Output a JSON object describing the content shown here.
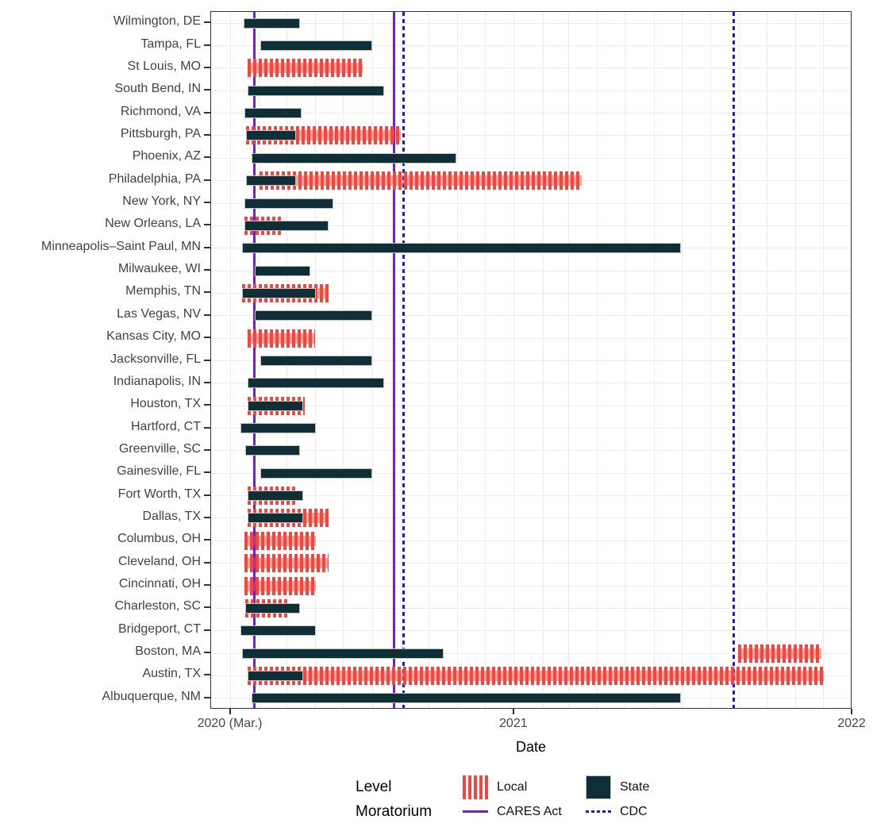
{
  "chart_data": {
    "type": "bar",
    "subtype": "gantt-timeline",
    "title": "",
    "xlabel": "Date",
    "ylabel": "",
    "x_domain": [
      "2020-02-09",
      "2022-01-01"
    ],
    "x_ticks": [
      {
        "date": "2020-03-01",
        "label": "2020 (Mar.)"
      },
      {
        "date": "2021-01-01",
        "label": "2021"
      },
      {
        "date": "2022-01-01",
        "label": "2022"
      }
    ],
    "grid": "monthly vertical + per-row horizontal, light gray",
    "legend_position": "bottom",
    "rows": [
      {
        "city": "Wilmington, DE",
        "bars": [
          {
            "level": "state",
            "start": "2020-03-15",
            "end": "2020-05-15"
          }
        ]
      },
      {
        "city": "Tampa, FL",
        "bars": [
          {
            "level": "state",
            "start": "2020-04-02",
            "end": "2020-08-01"
          }
        ]
      },
      {
        "city": "St Louis, MO",
        "bars": [
          {
            "level": "local",
            "start": "2020-03-19",
            "end": "2020-07-22"
          }
        ]
      },
      {
        "city": "South Bend, IN",
        "bars": [
          {
            "level": "state",
            "start": "2020-03-19",
            "end": "2020-08-14"
          }
        ]
      },
      {
        "city": "Richmond, VA",
        "bars": [
          {
            "level": "state",
            "start": "2020-03-16",
            "end": "2020-05-17"
          }
        ]
      },
      {
        "city": "Pittsburgh, PA",
        "bars": [
          {
            "level": "local",
            "start": "2020-03-18",
            "end": "2020-09-01"
          },
          {
            "level": "state",
            "start": "2020-03-18",
            "end": "2020-05-11"
          }
        ]
      },
      {
        "city": "Phoenix, AZ",
        "bars": [
          {
            "level": "state",
            "start": "2020-03-24",
            "end": "2020-10-31"
          }
        ]
      },
      {
        "city": "Philadelphia, PA",
        "bars": [
          {
            "level": "local",
            "start": "2020-04-01",
            "end": "2021-03-15"
          },
          {
            "level": "state",
            "start": "2020-03-18",
            "end": "2020-05-11"
          }
        ]
      },
      {
        "city": "New York, NY",
        "bars": [
          {
            "level": "state",
            "start": "2020-03-16",
            "end": "2020-06-20"
          }
        ]
      },
      {
        "city": "New Orleans, LA",
        "bars": [
          {
            "level": "local",
            "start": "2020-03-16",
            "end": "2020-04-24"
          },
          {
            "level": "state",
            "start": "2020-03-16",
            "end": "2020-06-15"
          }
        ]
      },
      {
        "city": "Minneapolis–Saint Paul, MN",
        "bars": [
          {
            "level": "state",
            "start": "2020-03-13",
            "end": "2021-06-30"
          }
        ]
      },
      {
        "city": "Milwaukee, WI",
        "bars": [
          {
            "level": "state",
            "start": "2020-03-27",
            "end": "2020-05-26"
          }
        ]
      },
      {
        "city": "Memphis, TN",
        "bars": [
          {
            "level": "local",
            "start": "2020-03-13",
            "end": "2020-06-15"
          },
          {
            "level": "state",
            "start": "2020-03-13",
            "end": "2020-06-01"
          }
        ]
      },
      {
        "city": "Las Vegas, NV",
        "bars": [
          {
            "level": "state",
            "start": "2020-03-27",
            "end": "2020-08-01"
          }
        ]
      },
      {
        "city": "Kansas City, MO",
        "bars": [
          {
            "level": "local",
            "start": "2020-03-19",
            "end": "2020-05-31"
          }
        ]
      },
      {
        "city": "Jacksonville, FL",
        "bars": [
          {
            "level": "state",
            "start": "2020-04-02",
            "end": "2020-08-01"
          }
        ]
      },
      {
        "city": "Indianapolis, IN",
        "bars": [
          {
            "level": "state",
            "start": "2020-03-19",
            "end": "2020-08-14"
          }
        ]
      },
      {
        "city": "Houston, TX",
        "bars": [
          {
            "level": "local",
            "start": "2020-03-19",
            "end": "2020-05-20"
          },
          {
            "level": "state",
            "start": "2020-03-19",
            "end": "2020-05-18"
          }
        ]
      },
      {
        "city": "Hartford, CT",
        "bars": [
          {
            "level": "state",
            "start": "2020-03-12",
            "end": "2020-06-01"
          }
        ]
      },
      {
        "city": "Greenville, SC",
        "bars": [
          {
            "level": "state",
            "start": "2020-03-17",
            "end": "2020-05-15"
          }
        ]
      },
      {
        "city": "Gainesville, FL",
        "bars": [
          {
            "level": "state",
            "start": "2020-04-02",
            "end": "2020-08-01"
          }
        ]
      },
      {
        "city": "Fort Worth, TX",
        "bars": [
          {
            "level": "local",
            "start": "2020-03-19",
            "end": "2020-05-12"
          },
          {
            "level": "state",
            "start": "2020-03-19",
            "end": "2020-05-18"
          }
        ]
      },
      {
        "city": "Dallas, TX",
        "bars": [
          {
            "level": "local",
            "start": "2020-03-19",
            "end": "2020-06-15"
          },
          {
            "level": "state",
            "start": "2020-03-19",
            "end": "2020-05-18"
          }
        ]
      },
      {
        "city": "Columbus, OH",
        "bars": [
          {
            "level": "local",
            "start": "2020-03-16",
            "end": "2020-06-01"
          }
        ]
      },
      {
        "city": "Cleveland, OH",
        "bars": [
          {
            "level": "local",
            "start": "2020-03-16",
            "end": "2020-06-15"
          }
        ]
      },
      {
        "city": "Cincinnati, OH",
        "bars": [
          {
            "level": "local",
            "start": "2020-03-16",
            "end": "2020-06-01"
          }
        ]
      },
      {
        "city": "Charleston, SC",
        "bars": [
          {
            "level": "local",
            "start": "2020-03-17",
            "end": "2020-05-03"
          },
          {
            "level": "state",
            "start": "2020-03-17",
            "end": "2020-05-15"
          }
        ]
      },
      {
        "city": "Bridgeport, CT",
        "bars": [
          {
            "level": "state",
            "start": "2020-03-12",
            "end": "2020-06-01"
          }
        ]
      },
      {
        "city": "Boston, MA",
        "bars": [
          {
            "level": "state",
            "start": "2020-03-13",
            "end": "2020-10-17"
          },
          {
            "level": "local",
            "start": "2021-08-31",
            "end": "2021-11-29"
          }
        ]
      },
      {
        "city": "Austin, TX",
        "bars": [
          {
            "level": "local",
            "start": "2020-03-19",
            "end": "2021-12-01"
          },
          {
            "level": "state",
            "start": "2020-03-19",
            "end": "2020-05-18"
          }
        ]
      },
      {
        "city": "Albuquerque, NM",
        "bars": [
          {
            "level": "state",
            "start": "2020-03-24",
            "end": "2021-06-30"
          }
        ]
      }
    ],
    "vlines": [
      {
        "name": "CARES Act start",
        "date": "2020-03-27",
        "style": "solid"
      },
      {
        "name": "CARES Act end",
        "date": "2020-08-24",
        "style": "solid"
      },
      {
        "name": "CDC start",
        "date": "2020-09-04",
        "style": "dotted"
      },
      {
        "name": "CDC end",
        "date": "2021-08-26",
        "style": "dotted"
      }
    ],
    "colors": {
      "state": "#0f2e35",
      "local_stripe": "#f2473f",
      "local_band": "rgba(242,71,63,0.5)",
      "cares": "#7a1cc9",
      "cdc": "#1a17e8",
      "grid": "#ececec",
      "panel_border": "#333333"
    }
  },
  "legend": {
    "level_title": "Level",
    "level_items": [
      {
        "label": "Local",
        "swatch": "striped-red"
      },
      {
        "label": "State",
        "swatch": "solid-dark-teal"
      }
    ],
    "moratorium_title": "Moratorium",
    "moratorium_items": [
      {
        "label": "CARES Act",
        "key": "solid-purple-line"
      },
      {
        "label": "CDC",
        "key": "dotted-blue-line"
      }
    ]
  }
}
